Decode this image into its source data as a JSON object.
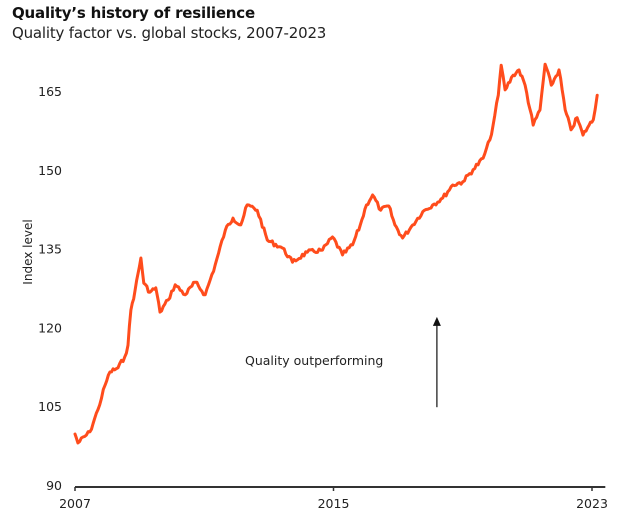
{
  "chart_data": {
    "type": "line",
    "title": "Quality’s history of resilience",
    "subtitle": "Quality factor vs. global stocks, 2007-2023",
    "xlabel": "",
    "ylabel": "Index level",
    "xlim": [
      2007,
      2023.35
    ],
    "ylim": [
      90,
      170
    ],
    "x_ticks": [
      2007,
      2015,
      2023
    ],
    "x_tick_labels": [
      "2007",
      "2015",
      "2023"
    ],
    "y_ticks": [
      90,
      105,
      120,
      135,
      150,
      165
    ],
    "y_tick_labels": [
      "90",
      "105",
      "120",
      "135",
      "150",
      "165"
    ],
    "grid": false,
    "legend": "none",
    "line_color": "#ff4c1c",
    "annotation": {
      "text": "Quality outperforming",
      "arrow": "up",
      "arrow_x": 2018.2,
      "arrow_from": 105,
      "arrow_to": 122
    },
    "series": [
      {
        "name": "Quality factor vs. global stocks",
        "x": [
          2007.0,
          2007.09,
          2007.46,
          2007.71,
          2007.93,
          2008.08,
          2008.33,
          2008.54,
          2008.64,
          2008.73,
          2008.86,
          2009.04,
          2009.13,
          2009.32,
          2009.5,
          2009.63,
          2009.88,
          2010.1,
          2010.41,
          2010.72,
          2011.03,
          2011.34,
          2011.65,
          2011.89,
          2012.13,
          2012.33,
          2012.64,
          2012.95,
          2013.42,
          2013.73,
          2014.19,
          2014.66,
          2014.97,
          2015.28,
          2015.59,
          2015.83,
          2016.02,
          2016.21,
          2016.46,
          2016.71,
          2016.9,
          2017.14,
          2017.45,
          2017.76,
          2018.07,
          2018.38,
          2018.69,
          2019.0,
          2019.32,
          2019.63,
          2019.84,
          2019.94,
          2020.1,
          2020.19,
          2020.31,
          2020.56,
          2020.74,
          2020.93,
          2021.18,
          2021.39,
          2021.55,
          2021.74,
          2021.98,
          2022.17,
          2022.35,
          2022.54,
          2022.72,
          2022.91,
          2023.04,
          2023.16
        ],
        "values": [
          99.9,
          98.2,
          100.3,
          104.5,
          109.2,
          111.7,
          112.5,
          114.6,
          116.8,
          123.5,
          127.3,
          133.4,
          128.6,
          126.9,
          127.7,
          123.1,
          125.4,
          128.3,
          126.4,
          128.8,
          126.4,
          132.1,
          138.7,
          141.0,
          139.7,
          143.5,
          142.5,
          136.8,
          135.3,
          132.6,
          134.5,
          134.9,
          137.4,
          134.0,
          135.9,
          139.7,
          143.5,
          145.4,
          142.5,
          143.3,
          139.7,
          137.2,
          139.7,
          142.2,
          143.5,
          144.8,
          147.3,
          147.9,
          150.2,
          152.4,
          155.9,
          158.7,
          164.4,
          170.1,
          165.4,
          168.2,
          169.2,
          166.3,
          158.7,
          161.6,
          170.3,
          166.3,
          169.2,
          161.6,
          157.8,
          160.1,
          156.8,
          158.7,
          159.7,
          164.4
        ]
      }
    ]
  }
}
